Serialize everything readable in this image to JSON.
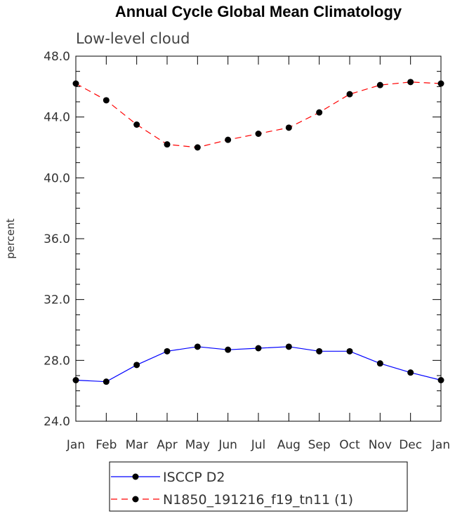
{
  "chart_data": {
    "type": "line",
    "title": "Annual Cycle Global Mean Climatology",
    "subtitle": "Low-level cloud",
    "xlabel": "",
    "ylabel": "percent",
    "categories": [
      "Jan",
      "Feb",
      "Mar",
      "Apr",
      "May",
      "Jun",
      "Jul",
      "Aug",
      "Sep",
      "Oct",
      "Nov",
      "Dec",
      "Jan"
    ],
    "ylim": [
      24.0,
      48.0
    ],
    "yticks": [
      "24.0",
      "28.0",
      "32.0",
      "36.0",
      "40.0",
      "44.0",
      "48.0"
    ],
    "grid": false,
    "legend_position": "bottom-center",
    "series": [
      {
        "name": "ISCCP D2",
        "color": "#0000ff",
        "line_style": "solid",
        "marker": "filled-circle",
        "values": [
          26.7,
          26.6,
          27.7,
          28.6,
          28.9,
          28.7,
          28.8,
          28.9,
          28.6,
          28.6,
          27.8,
          27.2,
          26.7
        ]
      },
      {
        "name": "N1850_191216_f19_tn11 (1)",
        "color": "#ff0000",
        "line_style": "dashed",
        "marker": "filled-circle",
        "values": [
          46.2,
          45.1,
          43.5,
          42.2,
          42.0,
          42.5,
          42.9,
          43.3,
          44.3,
          45.5,
          46.1,
          46.3,
          46.2
        ]
      }
    ]
  }
}
